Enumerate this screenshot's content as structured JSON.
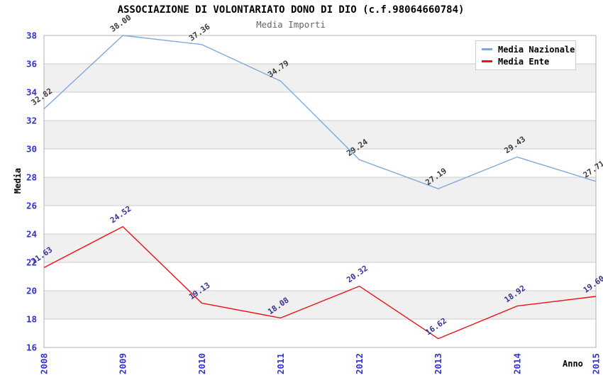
{
  "header": {
    "title": "ASSOCIAZIONE DI VOLONTARIATO DONO DI DIO (c.f.98064660784)",
    "subtitle": "Media Importi"
  },
  "colors": {
    "band": "#f0f0f0",
    "grid": "#cccccc",
    "plot_border": "#b0b0b0",
    "tick_label": "#3333cc",
    "national_line": "#7ea9dd",
    "entity_line": "#ee1111",
    "national_point_label": "#3c3c3c",
    "entity_point_label": "#333399"
  },
  "chart_data": {
    "type": "line",
    "title": "ASSOCIAZIONE DI VOLONTARIATO DONO DI DIO (c.f.98064660784)",
    "subtitle": "Media Importi",
    "xlabel": "Anno",
    "ylabel": "Media",
    "categories": [
      "2008",
      "2009",
      "2010",
      "2011",
      "2012",
      "2013",
      "2014",
      "2015"
    ],
    "series": [
      {
        "name": "Media Nazionale",
        "color": "#7ea9dd",
        "label_color": "#3c3c3c",
        "values": [
          32.82,
          38.0,
          37.36,
          34.79,
          29.24,
          27.19,
          29.43,
          27.71
        ]
      },
      {
        "name": "Media Ente",
        "color": "#ee1111",
        "label_color": "#333399",
        "values": [
          21.63,
          24.52,
          19.13,
          18.08,
          20.32,
          16.62,
          18.92,
          19.6
        ]
      }
    ],
    "ylim": [
      16,
      38
    ],
    "ytick_step": 2,
    "grid": true,
    "alternating_bands": true,
    "legend_position": "top-right",
    "point_labels_rotated": true
  }
}
